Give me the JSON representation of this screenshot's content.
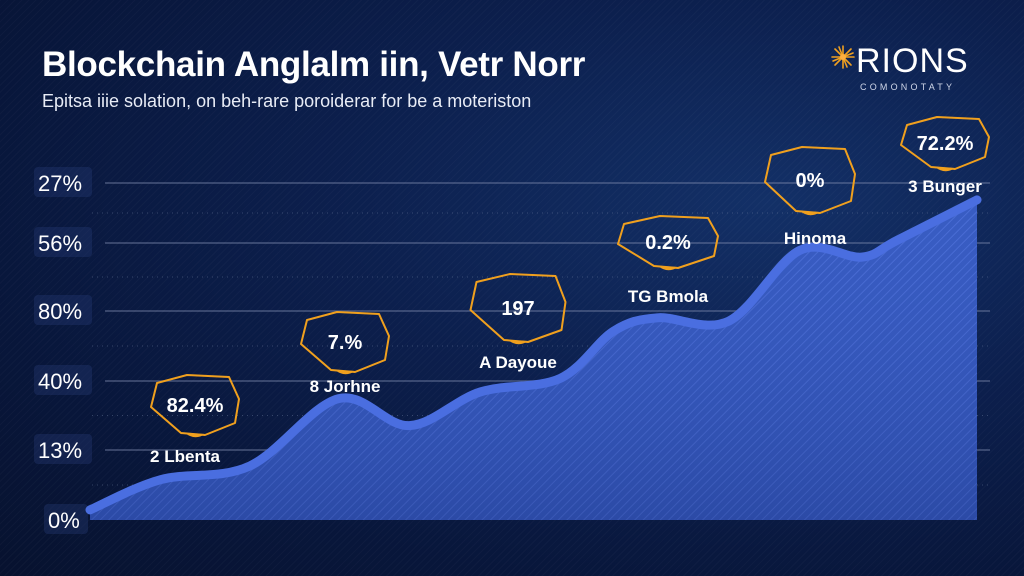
{
  "header": {
    "title": "Blockchain Anglalm iin, Vetr Norr",
    "subtitle": "Epitsa iiie solation, on beh-rare poroiderar for be a moteriston"
  },
  "logo": {
    "wordmark": "RIONS",
    "tagline": "COMONOTATY",
    "icon": "sparkle-icon",
    "accent_color": "#f0a020"
  },
  "colors": {
    "background": "#0b1d48",
    "area_fill": "#3a5fc8",
    "area_line": "#4a6ee0",
    "annotation_outline": "#f0a01e",
    "gridline": "#7a88a8"
  },
  "chart_data": {
    "type": "area",
    "title": "Blockchain Anglalm iin, Vetr Norr",
    "subtitle": "Epitsa iiie solation, on beh-rare poroiderar for be a moteriston",
    "xlabel": "",
    "ylabel": "",
    "y_tick_labels": [
      "27%",
      "56%",
      "80%",
      "40%",
      "13%",
      "0%"
    ],
    "y_tick_note": "tick labels listed top to bottom, as printed",
    "grid": true,
    "legend": "none",
    "series": [
      {
        "name": "area",
        "x": [
          0,
          0.08,
          0.18,
          0.28,
          0.36,
          0.44,
          0.53,
          0.59,
          0.64,
          0.72,
          0.8,
          0.87,
          0.91,
          1.0
        ],
        "values": [
          0.03,
          0.12,
          0.16,
          0.36,
          0.28,
          0.38,
          0.42,
          0.56,
          0.6,
          0.59,
          0.8,
          0.78,
          0.83,
          0.95
        ]
      }
    ],
    "y_scale_note": "values are fraction of plot height (0 = 0% baseline, 1 = top gridline '27%')",
    "annotations": [
      {
        "value": "82.4%",
        "label": "2 Lbenta"
      },
      {
        "value": "7.%",
        "label": "8 Jorhne"
      },
      {
        "value": "197",
        "label": "A Dayoue"
      },
      {
        "value": "0.2%",
        "label": "TG Bmola"
      },
      {
        "value": "0%",
        "label": "Hinoma"
      },
      {
        "value": "72.2%",
        "label": "3 Bunger"
      }
    ]
  }
}
